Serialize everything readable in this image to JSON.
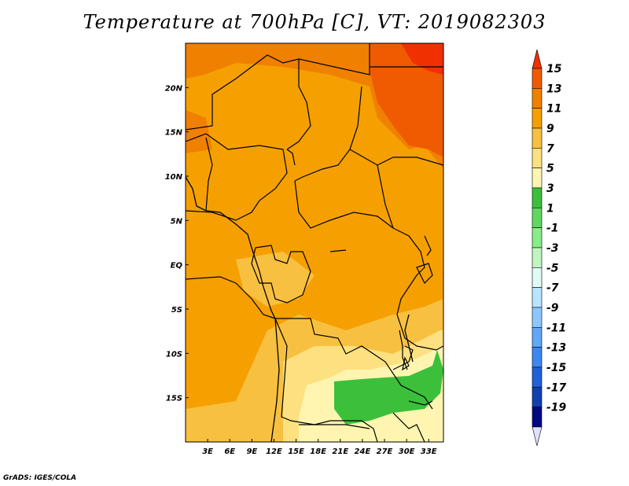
{
  "title": "Temperature at 700hPa [C], VT: 2019082303",
  "credit": "GrADS: IGES/COLA",
  "map": {
    "lon_range": [
      0,
      35
    ],
    "lat_range": [
      -20,
      25
    ],
    "lon_ticks": [
      {
        "value": 3,
        "label": "3E"
      },
      {
        "value": 6,
        "label": "6E"
      },
      {
        "value": 9,
        "label": "9E"
      },
      {
        "value": 12,
        "label": "12E"
      },
      {
        "value": 15,
        "label": "15E"
      },
      {
        "value": 18,
        "label": "18E"
      },
      {
        "value": 21,
        "label": "21E"
      },
      {
        "value": 24,
        "label": "24E"
      },
      {
        "value": 27,
        "label": "27E"
      },
      {
        "value": 30,
        "label": "30E"
      },
      {
        "value": 33,
        "label": "33E"
      }
    ],
    "lat_ticks": [
      {
        "value": 20,
        "label": "20N"
      },
      {
        "value": 15,
        "label": "15N"
      },
      {
        "value": 10,
        "label": "10N"
      },
      {
        "value": 5,
        "label": "5N"
      },
      {
        "value": 0,
        "label": "EQ"
      },
      {
        "value": -5,
        "label": "5S"
      },
      {
        "value": -10,
        "label": "10S"
      },
      {
        "value": -15,
        "label": "15S"
      }
    ]
  },
  "colorbar": {
    "labels": [
      "15",
      "13",
      "11",
      "9",
      "7",
      "5",
      "3",
      "1",
      "-1",
      "-3",
      "-5",
      "-7",
      "-9",
      "-11",
      "-13",
      "-15",
      "-17",
      "-19"
    ],
    "colors": [
      "#f03000",
      "#f05a00",
      "#f08000",
      "#f5a000",
      "#f8c040",
      "#fde080",
      "#fff5b0",
      "#3cc03c",
      "#60d860",
      "#88ec88",
      "#c0f5c0",
      "#e0fbf6",
      "#b8e4ff",
      "#8cc8ff",
      "#60a8f8",
      "#3c88f0",
      "#2060d8",
      "#1040b0",
      "#000880",
      "#e0e0ff"
    ]
  }
}
